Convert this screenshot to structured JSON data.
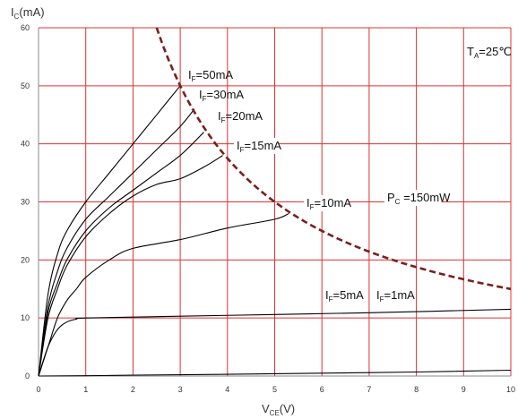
{
  "chart_data": {
    "type": "line",
    "title": "",
    "xlabel": {
      "main": "V",
      "sub": "CE",
      "unit": "(V)"
    },
    "ylabel": {
      "main": "I",
      "sub": "C",
      "unit": "(mA)"
    },
    "xlim": [
      0,
      10
    ],
    "ylim": [
      0,
      60
    ],
    "x_ticks": [
      "0",
      "1",
      "2",
      "3",
      "4",
      "5",
      "6",
      "7",
      "8",
      "9",
      "10"
    ],
    "y_ticks": [
      "0",
      "10",
      "20",
      "30",
      "40",
      "50",
      "60"
    ],
    "grid": true,
    "grid_color": "#e03030",
    "curve_color": "#000000",
    "power_curve_color": "#7a1f1f",
    "annotation_temp": {
      "main": "T",
      "sub": "A",
      "value": "=25℃"
    },
    "power_curve": {
      "label": {
        "main": "P",
        "sub": "C",
        "value": " =150mW"
      },
      "power_mW": 150,
      "x_start": 2.5,
      "x_end": 10
    },
    "series": [
      {
        "label": {
          "main": "I",
          "sub": "F",
          "value": "=50mA"
        },
        "x": [
          0,
          0.2,
          0.4,
          0.6,
          1.0,
          1.5,
          2.0,
          2.5,
          3.0
        ],
        "y": [
          0,
          14,
          21,
          25,
          30,
          35,
          40,
          45,
          50
        ]
      },
      {
        "label": {
          "main": "I",
          "sub": "F",
          "value": "=30mA"
        },
        "x": [
          0,
          0.2,
          0.4,
          0.6,
          1.0,
          1.5,
          2.0,
          2.5,
          3.0,
          3.3
        ],
        "y": [
          0,
          12,
          18,
          22,
          27,
          31,
          35,
          39,
          43,
          46
        ]
      },
      {
        "label": {
          "main": "I",
          "sub": "F",
          "value": "=20mA"
        },
        "x": [
          0,
          0.2,
          0.4,
          0.6,
          1.0,
          1.5,
          2.0,
          2.5,
          3.0,
          3.5
        ],
        "y": [
          0,
          11,
          16,
          20,
          25,
          29,
          32,
          35,
          38,
          42
        ]
      },
      {
        "label": {
          "main": "I",
          "sub": "F",
          "value": "=15mA"
        },
        "x": [
          0,
          0.2,
          0.4,
          0.6,
          1.0,
          1.5,
          2.0,
          2.5,
          3.0,
          3.5,
          3.9
        ],
        "y": [
          0,
          10,
          15,
          19,
          24,
          28,
          31,
          33,
          34,
          36,
          38
        ]
      },
      {
        "label": {
          "main": "I",
          "sub": "F",
          "value": "=10mA"
        },
        "x": [
          0,
          0.2,
          0.4,
          0.6,
          0.8,
          1.0,
          1.5,
          2.0,
          3.0,
          4.0,
          5.0,
          5.3
        ],
        "y": [
          0,
          5,
          10,
          13,
          15,
          17,
          20,
          22,
          23.5,
          25.5,
          27,
          28
        ]
      },
      {
        "label": {
          "main": "I",
          "sub": "F",
          "value": "=5mA"
        },
        "x": [
          0,
          0.2,
          0.4,
          0.6,
          0.8,
          1.0,
          3.0,
          5.0,
          7.0,
          10.0
        ],
        "y": [
          0,
          5,
          8,
          9.3,
          9.8,
          10,
          10.3,
          10.6,
          10.9,
          11.5
        ]
      },
      {
        "label": {
          "main": "I",
          "sub": "F",
          "value": "=1mA"
        },
        "x": [
          0,
          1,
          2,
          4,
          6,
          8,
          10
        ],
        "y": [
          0,
          0.05,
          0.15,
          0.3,
          0.5,
          0.7,
          1.0
        ]
      }
    ]
  }
}
